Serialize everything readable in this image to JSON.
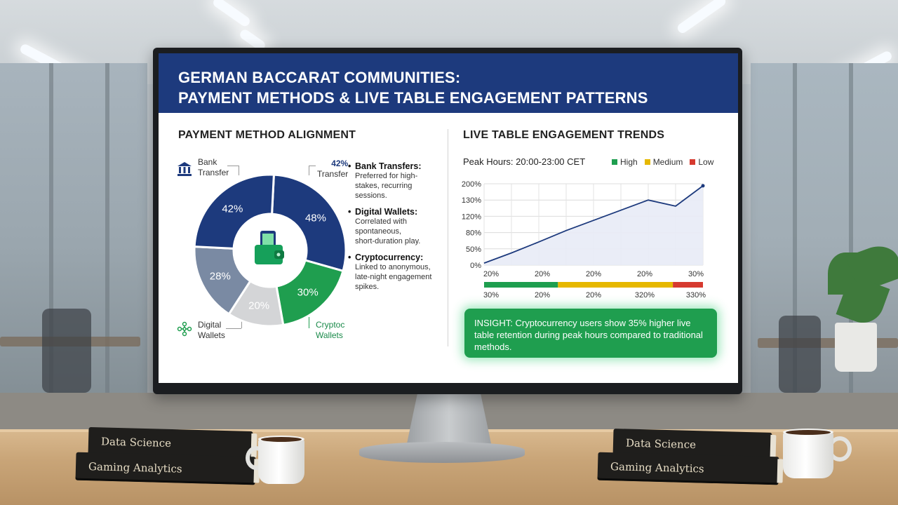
{
  "header": {
    "title_line1": "GERMAN BACCARAT COMMUNITIES:",
    "title_line2": "PAYMENT METHODS & LIVE TABLE ENGAGEMENT PATTERNS"
  },
  "left_panel": {
    "title": "PAYMENT METHOD ALIGNMENT",
    "labels": {
      "bank": [
        "Bank",
        "Transfer"
      ],
      "transfer": [
        "42%",
        "Transfer"
      ],
      "digital": [
        "Digital",
        "Wallets"
      ],
      "crypto": [
        "Cryptoc",
        "Wallets"
      ]
    },
    "bullets": [
      {
        "title": "Bank Transfers:",
        "desc": [
          "Preferred for high-",
          "stakes, recurring",
          "sessions."
        ]
      },
      {
        "title": "Digital Wallets:",
        "desc": [
          "Correlated with",
          "spontaneous,",
          "short-duration play."
        ]
      },
      {
        "title": "Cryptocurrency:",
        "desc": [
          "Linked to anonymous,",
          "late-night engagement",
          "spikes."
        ]
      }
    ]
  },
  "right_panel": {
    "title": "LIVE TABLE ENGAGEMENT TRENDS",
    "peak_hours": "Peak Hours: 20:00-23:00 CET",
    "legend": [
      {
        "label": "High",
        "color": "#1e9e4f"
      },
      {
        "label": "Medium",
        "color": "#e6b800"
      },
      {
        "label": "Low",
        "color": "#d63a2f"
      }
    ],
    "insight": "INSIGHT: Cryptocurrency users show 35% higher live table retention during peak hours compared to traditional methods."
  },
  "chart_data": [
    {
      "type": "pie",
      "donut": true,
      "slices": [
        {
          "label": "48%",
          "value": 48,
          "color": "#1d3a7d"
        },
        {
          "label": "30%",
          "value": 30,
          "color": "#1f9e4f"
        },
        {
          "label": "20%",
          "value": 20,
          "color": "#d4d5d7"
        },
        {
          "label": "28%",
          "value": 28,
          "color": "#7a8aa3"
        },
        {
          "label": "42%",
          "value": 42,
          "color": "#1d3a7d"
        }
      ],
      "center_icon": "wallet-phone-icon"
    },
    {
      "type": "line",
      "y_tick_labels": [
        "200%",
        "130%",
        "120%",
        "80%",
        "50%",
        "0%"
      ],
      "x_tick_labels": [
        "20%",
        "20%",
        "20%",
        "20%",
        "30%"
      ],
      "x": [
        0,
        1,
        2,
        3,
        4,
        5,
        6,
        7,
        8
      ],
      "values": [
        5,
        30,
        57,
        85,
        110,
        135,
        160,
        145,
        195
      ],
      "ylim": [
        0,
        200
      ],
      "grid": true,
      "line_color": "#1d3a7d",
      "fill_color": "#e8ebf6",
      "band": {
        "segments": [
          {
            "from": 0,
            "to": 2.7,
            "color": "#1e9e4f"
          },
          {
            "from": 2.7,
            "to": 6.9,
            "color": "#e6b800"
          },
          {
            "from": 6.9,
            "to": 8,
            "color": "#d63a2f"
          }
        ],
        "labels": [
          "30%",
          "20%",
          "20%",
          "320%",
          "330%"
        ]
      }
    }
  ]
}
